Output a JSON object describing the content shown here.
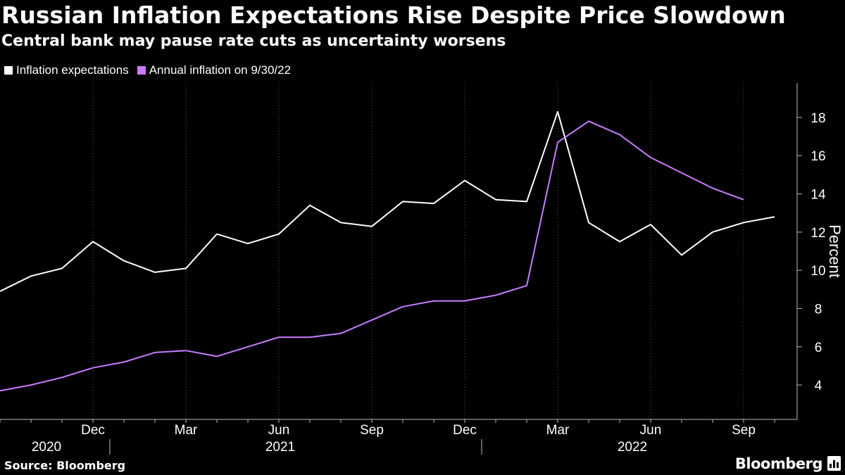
{
  "header": {
    "title": "Russian Inflation Expectations Rise Despite Price Slowdown",
    "subtitle": "Central bank may pause rate cuts as uncertainty worsens"
  },
  "footer": {
    "source": "Source: Bloomberg",
    "brand": "Bloomberg"
  },
  "colors": {
    "background": "#000000",
    "expectations": "#ffffff",
    "inflation": "#c77dff",
    "grid": "#555555"
  },
  "icons": [
    "bloomberg-terminal-icon"
  ],
  "chart_data": {
    "type": "line",
    "x": [
      "2020-09",
      "2020-10",
      "2020-11",
      "2020-12",
      "2021-01",
      "2021-02",
      "2021-03",
      "2021-04",
      "2021-05",
      "2021-06",
      "2021-07",
      "2021-08",
      "2021-09",
      "2021-10",
      "2021-11",
      "2021-12",
      "2022-01",
      "2022-02",
      "2022-03",
      "2022-04",
      "2022-05",
      "2022-06",
      "2022-07",
      "2022-08",
      "2022-09",
      "2022-10"
    ],
    "series": [
      {
        "name": "Inflation expectations",
        "color": "#ffffff",
        "values": [
          8.9,
          9.7,
          10.1,
          11.5,
          10.5,
          9.9,
          10.1,
          11.9,
          11.4,
          11.9,
          13.4,
          12.5,
          12.3,
          13.6,
          13.5,
          14.7,
          13.7,
          13.6,
          18.3,
          12.5,
          11.5,
          12.4,
          10.8,
          12.0,
          12.5,
          12.8
        ]
      },
      {
        "name": "Annual inflation on 9/30/22",
        "color": "#c77dff",
        "values": [
          3.7,
          4.0,
          4.4,
          4.9,
          5.2,
          5.7,
          5.8,
          5.5,
          6.0,
          6.5,
          6.5,
          6.7,
          7.4,
          8.1,
          8.4,
          8.4,
          8.7,
          9.2,
          16.7,
          17.8,
          17.1,
          15.9,
          15.1,
          14.3,
          13.7,
          null
        ]
      }
    ],
    "title": "Russian Inflation Expectations Rise Despite Price Slowdown",
    "subtitle": "Central bank may pause rate cuts as uncertainty worsens",
    "ylabel": "Percent",
    "ylim": [
      2.2,
      19.8
    ],
    "yticks": [
      "4",
      "6",
      "8",
      "10",
      "12",
      "14",
      "16",
      "18"
    ],
    "ytick_values": [
      4,
      6,
      8,
      10,
      12,
      14,
      16,
      18
    ],
    "xticks": [
      {
        "label": "Dec",
        "date": "2020-12"
      },
      {
        "label": "Mar",
        "date": "2021-03"
      },
      {
        "label": "Jun",
        "date": "2021-06"
      },
      {
        "label": "Sep",
        "date": "2021-09"
      },
      {
        "label": "Dec",
        "date": "2021-12"
      },
      {
        "label": "Mar",
        "date": "2022-03"
      },
      {
        "label": "Jun",
        "date": "2022-06"
      },
      {
        "label": "Sep",
        "date": "2022-09"
      }
    ],
    "years": [
      {
        "label": "2020",
        "date": "2020-11"
      },
      {
        "label": "2021",
        "date": "2021-06"
      },
      {
        "label": "2022",
        "date": "2022-06"
      }
    ],
    "year_dividers": [
      "2021-01",
      "2022-01"
    ],
    "grid": "vertical",
    "legend": "top-left"
  }
}
